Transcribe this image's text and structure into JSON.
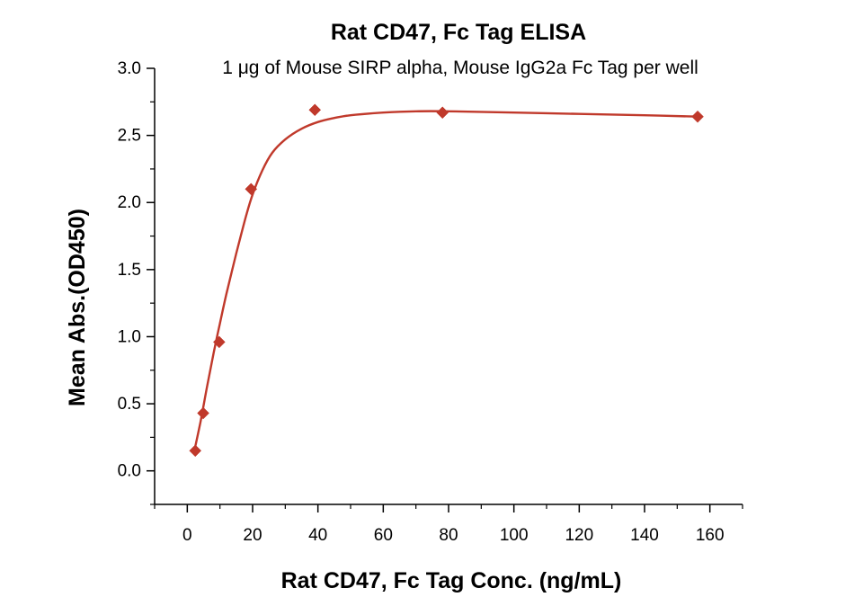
{
  "chart_data": {
    "type": "scatter",
    "title": "Rat CD47, Fc Tag ELISA",
    "subtitle": "1 μg of Mouse SIRP alpha, Mouse IgG2a Fc Tag per well",
    "xlabel": "Rat CD47, Fc Tag Conc. (ng/mL)",
    "ylabel": "Mean Abs.(OD450)",
    "xlim": [
      -10,
      170
    ],
    "ylim": [
      -0.25,
      3.0
    ],
    "xticks": [
      0,
      20,
      40,
      60,
      80,
      100,
      120,
      140,
      160
    ],
    "xtick_labels": [
      "0",
      "20",
      "40",
      "60",
      "80",
      "100",
      "120",
      "140",
      "160"
    ],
    "yticks": [
      0.0,
      0.5,
      1.0,
      1.5,
      2.0,
      2.5,
      3.0
    ],
    "ytick_labels": [
      "0.0",
      "0.5",
      "1.0",
      "1.5",
      "2.0",
      "2.5",
      "3.0"
    ],
    "grid": false,
    "series": [
      {
        "name": "Rat CD47, Fc Tag",
        "color": "#c0392b",
        "marker": "diamond",
        "x": [
          2.44,
          4.88,
          9.77,
          19.53,
          39.06,
          78.13,
          156.25
        ],
        "y": [
          0.15,
          0.43,
          0.96,
          2.1,
          2.69,
          2.67,
          2.64
        ]
      }
    ],
    "fit_curve": {
      "color": "#c0392b",
      "x": [
        2.0,
        4.0,
        6.0,
        8.0,
        10.0,
        12.0,
        15.0,
        18.0,
        20.0,
        23.0,
        26.0,
        30.0,
        35.0,
        40.0,
        45.0,
        50.0,
        60.0,
        70.0,
        80.0,
        100.0,
        120.0,
        140.0,
        156.25
      ],
      "y": [
        0.13,
        0.36,
        0.62,
        0.87,
        1.1,
        1.32,
        1.62,
        1.9,
        2.06,
        2.24,
        2.37,
        2.47,
        2.55,
        2.6,
        2.63,
        2.65,
        2.67,
        2.68,
        2.68,
        2.67,
        2.66,
        2.65,
        2.64
      ]
    }
  }
}
